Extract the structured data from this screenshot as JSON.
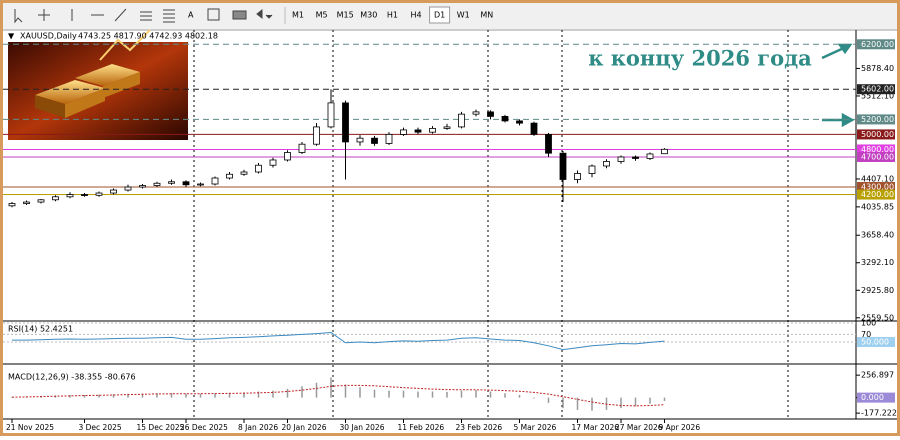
{
  "toolbar": {
    "timeframes": [
      "M1",
      "M5",
      "M15",
      "M30",
      "H1",
      "H4",
      "D1",
      "W1",
      "MN"
    ],
    "active": "D1"
  },
  "header": {
    "symbol": "XAUUSD,Daily",
    "ohlc": "4743.25 4817.90 4742.93 4802.18"
  },
  "annotation": "к концу 2026 года",
  "chart_data": {
    "type": "candlestick",
    "categories": [
      "21 Nov 2025",
      null,
      null,
      null,
      null,
      "3 Dec 2025",
      null,
      null,
      null,
      "15 Dec 2025",
      null,
      null,
      "26 Dec 2025",
      null,
      null,
      null,
      "8 Jan 2026",
      null,
      null,
      "20 Jan 2026",
      null,
      null,
      null,
      "30 Jan 2026",
      null,
      null,
      null,
      "11 Feb 2026",
      null,
      null,
      null,
      "23 Feb 2026",
      null,
      null,
      null,
      "5 Mar 2026",
      null,
      null,
      null,
      "17 Mar 2026",
      null,
      null,
      "27 Mar 2026",
      null,
      null,
      "9 Apr 2026"
    ],
    "open": [
      4050,
      4080,
      4100,
      4130,
      4170,
      4200,
      4190,
      4220,
      4260,
      4300,
      4320,
      4350,
      4370,
      4330,
      4340,
      4420,
      4470,
      4500,
      4590,
      4660,
      4760,
      4870,
      5100,
      5420,
      4900,
      4950,
      4880,
      5000,
      5060,
      5030,
      5080,
      5100,
      5270,
      5300,
      5240,
      5180,
      5150,
      5000,
      4750,
      4400,
      4480,
      4580,
      4640,
      4700,
      4680,
      4743.25
    ],
    "high": [
      4100,
      4120,
      4140,
      4190,
      4230,
      4220,
      4240,
      4280,
      4330,
      4340,
      4370,
      4400,
      4390,
      4360,
      4440,
      4500,
      4530,
      4620,
      4690,
      4790,
      4900,
      5150,
      5602,
      5450,
      4990,
      4980,
      5030,
      5090,
      5090,
      5110,
      5140,
      5300,
      5330,
      5320,
      5260,
      5200,
      5170,
      5020,
      4780,
      4520,
      4600,
      4670,
      4720,
      4720,
      4760,
      4817.9
    ],
    "low": [
      4030,
      4060,
      4080,
      4110,
      4150,
      4170,
      4170,
      4200,
      4240,
      4280,
      4300,
      4330,
      4300,
      4310,
      4320,
      4400,
      4450,
      4480,
      4560,
      4640,
      4740,
      4850,
      5080,
      4400,
      4850,
      4850,
      4860,
      4980,
      5000,
      5010,
      5060,
      5080,
      5240,
      5200,
      5160,
      5120,
      4980,
      4700,
      4100,
      4350,
      4430,
      4550,
      4610,
      4650,
      4660,
      4742.93
    ],
    "close": [
      4080,
      4100,
      4130,
      4170,
      4200,
      4190,
      4220,
      4260,
      4300,
      4320,
      4350,
      4370,
      4330,
      4340,
      4420,
      4470,
      4500,
      4590,
      4660,
      4760,
      4870,
      5100,
      5420,
      4900,
      4950,
      4880,
      5000,
      5060,
      5030,
      5080,
      5100,
      5270,
      5300,
      5240,
      5180,
      5150,
      5000,
      4750,
      4400,
      4480,
      4580,
      4640,
      4700,
      4680,
      4740,
      4802.18
    ],
    "ylim": [
      2530,
      6390
    ],
    "yticks": [
      {
        "value": 5878.4,
        "label": "5878.40"
      },
      {
        "value": 5512.1,
        "label": "5512.10"
      },
      {
        "value": 4407.1,
        "label": "4407.10"
      },
      4035.85,
      {
        "value": 3658.4,
        "label": "3658.40"
      },
      {
        "value": 3292.1,
        "label": "3292.10"
      },
      {
        "value": 2925.8,
        "label": "2925.80"
      },
      {
        "value": 2559.5,
        "label": "2559.50"
      }
    ],
    "levels": [
      {
        "value": 6200,
        "label": "6200.00",
        "color": "#5f8a88",
        "dashed": true
      },
      {
        "value": 5602,
        "label": "5602.00",
        "color": "#222222",
        "dashed": true
      },
      {
        "value": 5200,
        "label": "5200.00",
        "color": "#5f8a88",
        "dashed": true
      },
      {
        "value": 5000,
        "label": "5000.00",
        "color": "#8b1a1a",
        "dashed": false
      },
      {
        "value": 4800,
        "label": "4800.00",
        "color": "#e040e0",
        "dashed": false
      },
      {
        "value": 4700,
        "label": "4700.00",
        "color": "#c040c0",
        "dashed": false
      },
      {
        "value": 4300,
        "label": "4300.00",
        "color": "#a0522d",
        "dashed": false
      },
      {
        "value": 4200,
        "label": "4200.00",
        "color": "#b8a000",
        "dashed": false
      }
    ],
    "rsi": {
      "label": "RSI(14) 52.4251",
      "color": "#3a8ac0",
      "ylim": [
        0,
        100
      ],
      "yticks": [
        100,
        70
      ],
      "level": {
        "value": 50,
        "label": "50.000"
      },
      "values": [
        55,
        55,
        56,
        57,
        58,
        57,
        58,
        59,
        60,
        60,
        61,
        62,
        57,
        57,
        59,
        61,
        62,
        64,
        66,
        68,
        70,
        72,
        75,
        48,
        50,
        48,
        51,
        53,
        52,
        54,
        55,
        60,
        61,
        58,
        55,
        54,
        48,
        40,
        30,
        35,
        40,
        43,
        46,
        45,
        49,
        52.4251
      ]
    },
    "macd": {
      "label": "MACD(12,26,9) -38.355 -80.676",
      "color": "#999999",
      "signal_color": "#c02020",
      "ylim": [
        -233,
        373
      ],
      "yticks": [
        256.897,
        {
          "value": 0,
          "label": "0.000"
        },
        -177.222
      ],
      "histogram": [
        10,
        15,
        20,
        25,
        30,
        30,
        35,
        40,
        45,
        48,
        50,
        52,
        45,
        45,
        50,
        55,
        60,
        70,
        80,
        100,
        130,
        170,
        230,
        150,
        120,
        90,
        80,
        80,
        70,
        70,
        65,
        80,
        85,
        70,
        50,
        30,
        -10,
        -60,
        -120,
        -140,
        -150,
        -140,
        -120,
        -100,
        -70,
        -38.355
      ],
      "signal": [
        5,
        8,
        12,
        16,
        20,
        24,
        27,
        30,
        35,
        38,
        42,
        44,
        45,
        45,
        46,
        48,
        50,
        55,
        60,
        70,
        85,
        105,
        130,
        140,
        140,
        135,
        125,
        115,
        105,
        98,
        92,
        90,
        90,
        86,
        80,
        72,
        60,
        40,
        10,
        -20,
        -50,
        -75,
        -90,
        -95,
        -90,
        -80.676
      ]
    }
  }
}
